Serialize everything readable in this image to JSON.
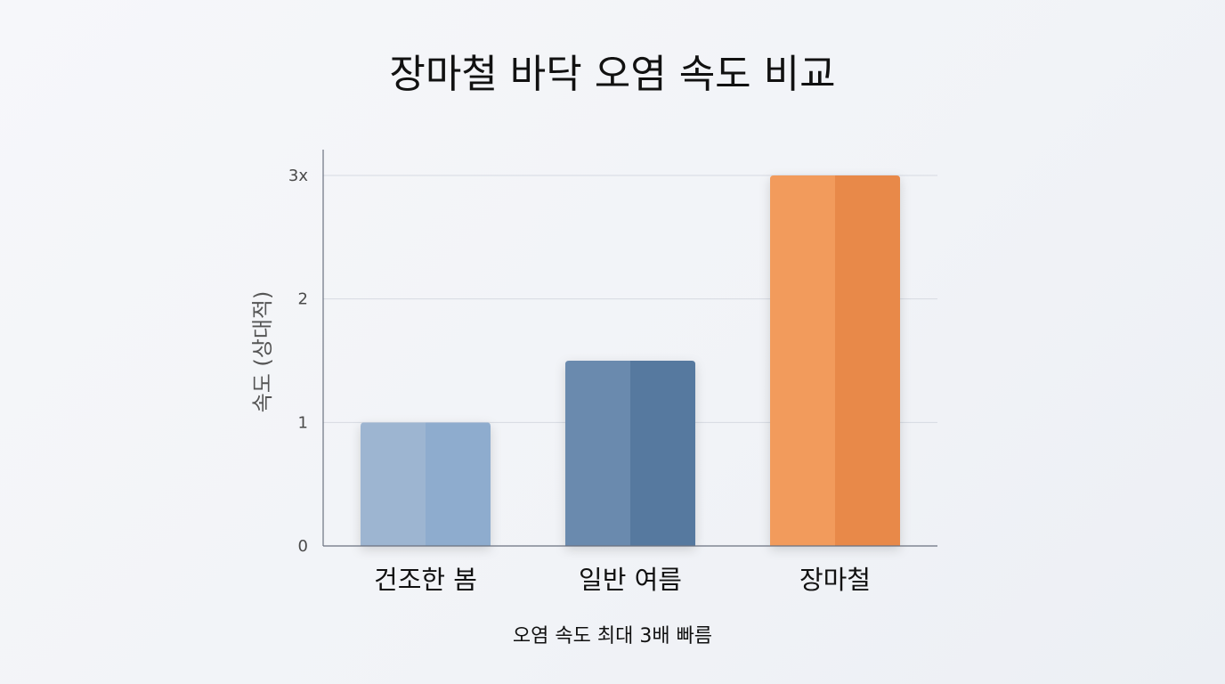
{
  "chart_data": {
    "type": "bar",
    "title": "장마철 바닥 오염 속도 비교",
    "ylabel": "속도 (상대적)",
    "xlabel": "오염 속도 최대 3배 빠름",
    "categories": [
      "건조한 봄",
      "일반 여름",
      "장마철"
    ],
    "values": [
      1,
      1.5,
      3
    ],
    "ylim": [
      0,
      3
    ],
    "yticks": [
      0,
      1,
      2,
      3
    ],
    "ytick_labels": [
      "0",
      "1",
      "2",
      "3x"
    ],
    "grid": true,
    "legend": "none",
    "colors": [
      {
        "left": "#9db5d1",
        "right": "#8eacce"
      },
      {
        "left": "#6a8aae",
        "right": "#56799f"
      },
      {
        "left": "#f29b5c",
        "right": "#e8894a"
      }
    ],
    "gridline_color": "#d6dae2",
    "axis_color": "#6b7280"
  }
}
